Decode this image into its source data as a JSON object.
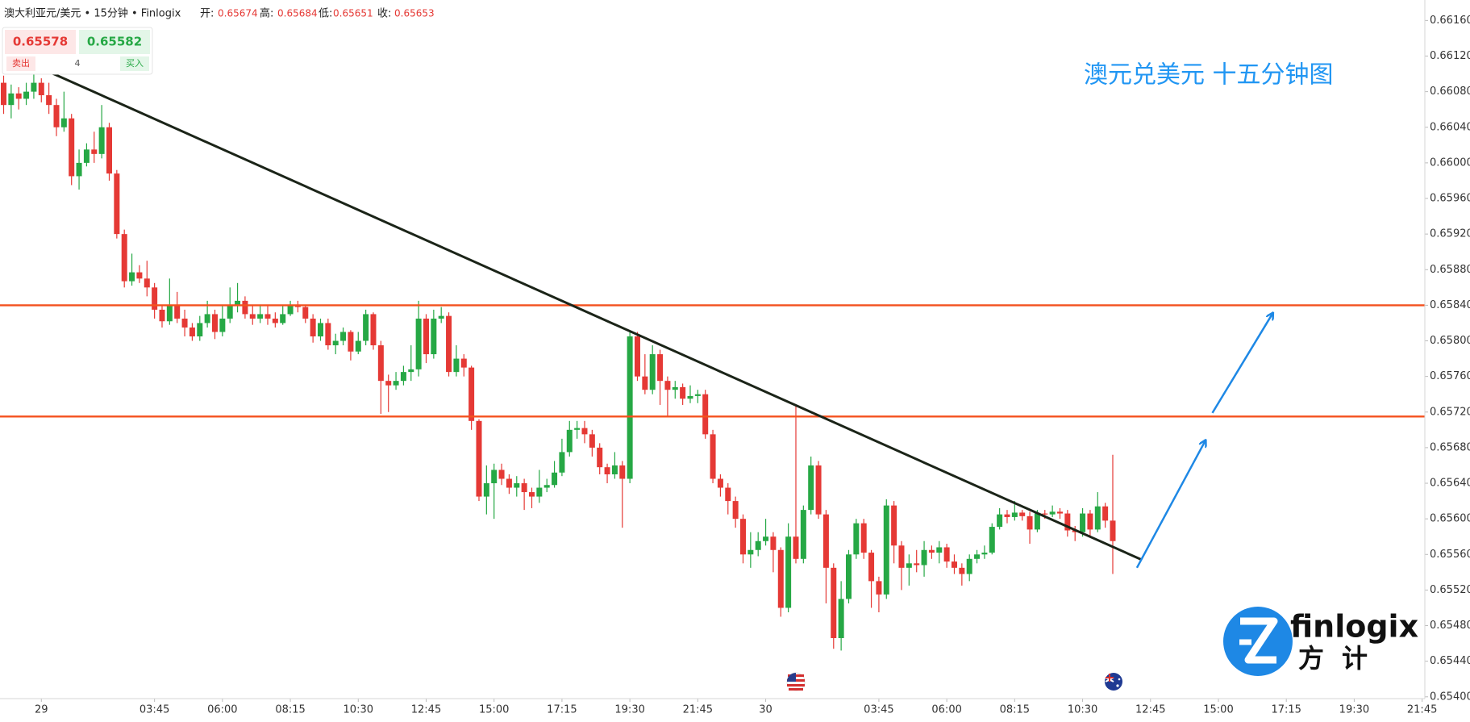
{
  "header": {
    "symbol": "澳大利亚元/美元 • 15分钟 • Finlogix",
    "open_label": "开:",
    "open": 0.65674,
    "high_label": "高:",
    "high": 0.65684,
    "low_label": "低:",
    "low": 0.65651,
    "close_label": "收:",
    "close": 0.65653
  },
  "quote": {
    "sell_price": 0.65578,
    "buy_price": 0.65582,
    "sell_label": "卖出",
    "spread": 4,
    "buy_label": "买入"
  },
  "logo": {
    "name": "finlogix",
    "name_cn": "方计"
  },
  "chart_data": {
    "type": "candlestick",
    "annotation": "澳元兑美元 十五分钟图",
    "x": [
      -1.25,
      -1,
      -0.75,
      -0.5,
      -0.25,
      0,
      0.25,
      0.5,
      0.75,
      1,
      1.25,
      1.5,
      1.75,
      2,
      2.25,
      2.5,
      2.75,
      3,
      3.25,
      3.5,
      3.75,
      4,
      4.25,
      4.5,
      4.75,
      5,
      5.25,
      5.5,
      5.75,
      6,
      6.25,
      6.5,
      6.75,
      7,
      7.25,
      7.5,
      7.75,
      8,
      8.25,
      8.5,
      8.75,
      9,
      9.25,
      9.5,
      9.75,
      10,
      10.25,
      10.5,
      10.75,
      11,
      11.25,
      11.5,
      11.75,
      12,
      12.25,
      12.5,
      12.75,
      13,
      13.25,
      13.5,
      13.75,
      14,
      14.25,
      14.5,
      14.75,
      15,
      15.25,
      15.5,
      15.75,
      16,
      16.25,
      16.5,
      16.75,
      17,
      17.25,
      17.5,
      17.75,
      18,
      18.25,
      18.5,
      18.75,
      19,
      19.25,
      19.5,
      19.75,
      20,
      20.25,
      20.5,
      20.75,
      21,
      21.25,
      21.5,
      21.75,
      22,
      22.25,
      22.5,
      22.75,
      23,
      23.25,
      23.5,
      23.75,
      24,
      24.25,
      24.5,
      24.75,
      25,
      25.25,
      25.5,
      25.75,
      26,
      26.25,
      26.5,
      26.75,
      27,
      27.25,
      27.5,
      27.75,
      28,
      28.25,
      28.5,
      28.75,
      29,
      29.25,
      29.5,
      29.75,
      30,
      30.25,
      30.5,
      30.75,
      31,
      31.25,
      31.5,
      31.75,
      32,
      32.25,
      32.5,
      32.75,
      33,
      33.25,
      33.5,
      33.75,
      34,
      34.25,
      34.5,
      34.75,
      35,
      35.25,
      35.5
    ],
    "open": [
      0.6609,
      0.66065,
      0.66078,
      0.66072,
      0.6608,
      0.6609,
      0.66076,
      0.66065,
      0.6604,
      0.6605,
      0.65985,
      0.66,
      0.66015,
      0.6601,
      0.6604,
      0.65988,
      0.6592,
      0.65867,
      0.65877,
      0.6587,
      0.6586,
      0.65835,
      0.65822,
      0.6584,
      0.65825,
      0.65815,
      0.65805,
      0.6582,
      0.6583,
      0.6581,
      0.65825,
      0.6584,
      0.65845,
      0.6583,
      0.65825,
      0.6583,
      0.65825,
      0.6582,
      0.6583,
      0.6584,
      0.65838,
      0.65825,
      0.65805,
      0.6582,
      0.65795,
      0.658,
      0.6581,
      0.65788,
      0.658,
      0.6583,
      0.65795,
      0.65755,
      0.6575,
      0.65755,
      0.65765,
      0.65768,
      0.65825,
      0.65785,
      0.65825,
      0.65828,
      0.65765,
      0.6578,
      0.6577,
      0.6571,
      0.65625,
      0.6564,
      0.65655,
      0.65645,
      0.65635,
      0.6564,
      0.6563,
      0.65625,
      0.65635,
      0.65638,
      0.65652,
      0.65675,
      0.657,
      0.65702,
      0.65695,
      0.6568,
      0.65658,
      0.6565,
      0.6566,
      0.65645,
      0.65805,
      0.6576,
      0.65745,
      0.65785,
      0.65755,
      0.65745,
      0.65748,
      0.65735,
      0.65738,
      0.6574,
      0.65695,
      0.65645,
      0.65635,
      0.6562,
      0.656,
      0.6556,
      0.65565,
      0.65575,
      0.6558,
      0.65565,
      0.655,
      0.6558,
      0.65555,
      0.6561,
      0.6566,
      0.65605,
      0.65545,
      0.65466,
      0.6551,
      0.6556,
      0.65595,
      0.65562,
      0.6553,
      0.65515,
      0.65615,
      0.6557,
      0.65545,
      0.6555,
      0.65548,
      0.65565,
      0.65562,
      0.65568,
      0.65552,
      0.65545,
      0.65538,
      0.65555,
      0.6556,
      0.65562,
      0.65591,
      0.65605,
      0.65602,
      0.65607,
      0.65603,
      0.65588,
      0.65606,
      0.65605,
      0.65608,
      0.65606,
      0.65587,
      0.65585,
      0.65606,
      0.65588,
      0.65614,
      0.65598
    ],
    "high": [
      0.66098,
      0.66088,
      0.66085,
      0.6609,
      0.661,
      0.66095,
      0.6609,
      0.66072,
      0.6608,
      0.66055,
      0.66015,
      0.66022,
      0.66035,
      0.66065,
      0.66045,
      0.65992,
      0.65925,
      0.65898,
      0.65885,
      0.6589,
      0.65865,
      0.6584,
      0.6587,
      0.65855,
      0.65835,
      0.6582,
      0.65828,
      0.65845,
      0.65835,
      0.6584,
      0.6586,
      0.65865,
      0.6585,
      0.6584,
      0.6584,
      0.6584,
      0.65832,
      0.6584,
      0.65845,
      0.65845,
      0.6584,
      0.6583,
      0.65825,
      0.65825,
      0.65808,
      0.65815,
      0.65812,
      0.6581,
      0.65835,
      0.65832,
      0.658,
      0.65762,
      0.65765,
      0.65772,
      0.65795,
      0.65845,
      0.6583,
      0.65835,
      0.65838,
      0.65832,
      0.65795,
      0.65785,
      0.65772,
      0.65712,
      0.6566,
      0.65662,
      0.65662,
      0.6565,
      0.65648,
      0.65645,
      0.65635,
      0.65655,
      0.65645,
      0.65665,
      0.6569,
      0.6571,
      0.6571,
      0.6571,
      0.657,
      0.65685,
      0.65662,
      0.65675,
      0.65665,
      0.6581,
      0.6581,
      0.65785,
      0.65795,
      0.6579,
      0.6576,
      0.65755,
      0.65752,
      0.6575,
      0.65745,
      0.65745,
      0.657,
      0.6565,
      0.6564,
      0.65625,
      0.65605,
      0.65585,
      0.65585,
      0.656,
      0.65585,
      0.65568,
      0.65595,
      0.65728,
      0.65615,
      0.6567,
      0.65665,
      0.6561,
      0.6555,
      0.6553,
      0.65565,
      0.656,
      0.656,
      0.65565,
      0.65535,
      0.65622,
      0.6562,
      0.65575,
      0.6556,
      0.65565,
      0.65575,
      0.6557,
      0.65575,
      0.65572,
      0.6556,
      0.6555,
      0.6556,
      0.65565,
      0.6557,
      0.65595,
      0.65612,
      0.6561,
      0.6562,
      0.6561,
      0.65608,
      0.6561,
      0.6561,
      0.65615,
      0.65612,
      0.6561,
      0.65592,
      0.65612,
      0.6561,
      0.6563,
      0.65618,
      0.65672
    ],
    "low": [
      0.66055,
      0.6605,
      0.6606,
      0.66065,
      0.66072,
      0.66068,
      0.66055,
      0.6603,
      0.66035,
      0.65975,
      0.6597,
      0.65996,
      0.66,
      0.66005,
      0.6598,
      0.65915,
      0.6586,
      0.65862,
      0.65865,
      0.6585,
      0.65825,
      0.65815,
      0.65818,
      0.6582,
      0.65805,
      0.658,
      0.658,
      0.65815,
      0.65802,
      0.65805,
      0.6582,
      0.65832,
      0.65825,
      0.65818,
      0.6582,
      0.65818,
      0.65815,
      0.65818,
      0.65828,
      0.65832,
      0.6582,
      0.65798,
      0.658,
      0.6579,
      0.65785,
      0.65795,
      0.65778,
      0.65785,
      0.65795,
      0.6579,
      0.65718,
      0.6572,
      0.65745,
      0.6575,
      0.65755,
      0.6576,
      0.65775,
      0.6578,
      0.6582,
      0.6576,
      0.6576,
      0.6576,
      0.657,
      0.6562,
      0.65605,
      0.656,
      0.65638,
      0.65628,
      0.65625,
      0.6561,
      0.65612,
      0.65618,
      0.6563,
      0.65635,
      0.65648,
      0.6567,
      0.6569,
      0.65685,
      0.6567,
      0.6565,
      0.6564,
      0.65645,
      0.6559,
      0.6564,
      0.65755,
      0.6574,
      0.6574,
      0.65728,
      0.65715,
      0.65735,
      0.65728,
      0.6573,
      0.6573,
      0.6569,
      0.6564,
      0.65625,
      0.65605,
      0.6559,
      0.6555,
      0.65545,
      0.65558,
      0.6557,
      0.6554,
      0.6549,
      0.65495,
      0.6555,
      0.6555,
      0.65605,
      0.656,
      0.65505,
      0.65454,
      0.65452,
      0.65505,
      0.65555,
      0.65555,
      0.655,
      0.65495,
      0.6551,
      0.6555,
      0.6552,
      0.65525,
      0.6554,
      0.65535,
      0.65555,
      0.6555,
      0.65545,
      0.65538,
      0.65525,
      0.6553,
      0.6555,
      0.65555,
      0.6556,
      0.65588,
      0.65595,
      0.65598,
      0.65598,
      0.65572,
      0.65585,
      0.656,
      0.65602,
      0.656,
      0.6558,
      0.65575,
      0.6558,
      0.6558,
      0.65585,
      0.6559,
      0.65538
    ],
    "close": [
      0.66065,
      0.66078,
      0.66072,
      0.6608,
      0.6609,
      0.66076,
      0.66065,
      0.6604,
      0.6605,
      0.65985,
      0.66,
      0.66015,
      0.6601,
      0.6604,
      0.65988,
      0.6592,
      0.65867,
      0.65877,
      0.6587,
      0.6586,
      0.65835,
      0.65822,
      0.6584,
      0.65825,
      0.65815,
      0.65805,
      0.6582,
      0.6583,
      0.6581,
      0.65825,
      0.6584,
      0.65845,
      0.6583,
      0.65825,
      0.6583,
      0.65825,
      0.6582,
      0.6583,
      0.6584,
      0.65838,
      0.65825,
      0.65805,
      0.6582,
      0.65795,
      0.658,
      0.6581,
      0.65788,
      0.658,
      0.6583,
      0.65795,
      0.65755,
      0.6575,
      0.65755,
      0.65765,
      0.65768,
      0.65825,
      0.65785,
      0.65825,
      0.65828,
      0.65765,
      0.6578,
      0.6577,
      0.6571,
      0.65625,
      0.6564,
      0.65655,
      0.65645,
      0.65635,
      0.6564,
      0.6563,
      0.65625,
      0.65635,
      0.65638,
      0.65652,
      0.65675,
      0.657,
      0.65702,
      0.65695,
      0.6568,
      0.65658,
      0.6565,
      0.6566,
      0.65645,
      0.65805,
      0.6576,
      0.65745,
      0.65785,
      0.65755,
      0.65745,
      0.65748,
      0.65735,
      0.65738,
      0.6574,
      0.65695,
      0.65645,
      0.65635,
      0.6562,
      0.656,
      0.6556,
      0.65565,
      0.65575,
      0.6558,
      0.65565,
      0.655,
      0.6558,
      0.65555,
      0.6561,
      0.6566,
      0.65605,
      0.65545,
      0.65466,
      0.6551,
      0.6556,
      0.65595,
      0.65562,
      0.6553,
      0.65515,
      0.65615,
      0.6557,
      0.65545,
      0.6555,
      0.65548,
      0.65565,
      0.65562,
      0.65568,
      0.65552,
      0.65545,
      0.65538,
      0.65555,
      0.6556,
      0.65562,
      0.65591,
      0.65605,
      0.65602,
      0.65607,
      0.65603,
      0.65588,
      0.65606,
      0.65605,
      0.65608,
      0.65606,
      0.65587,
      0.65585,
      0.65606,
      0.65588,
      0.65614,
      0.65598,
      0.65575
    ],
    "up_color": "#26a845",
    "down_color": "#e53935",
    "xlim": [
      -1.37,
      45.84
    ],
    "ylim": [
      0.65398,
      0.66183
    ],
    "xticks": [
      {
        "value": 0,
        "label": "29"
      },
      {
        "value": 3.75,
        "label": "03:45"
      },
      {
        "value": 6,
        "label": "06:00"
      },
      {
        "value": 8.25,
        "label": "08:15"
      },
      {
        "value": 10.5,
        "label": "10:30"
      },
      {
        "value": 12.75,
        "label": "12:45"
      },
      {
        "value": 15,
        "label": "15:00"
      },
      {
        "value": 17.25,
        "label": "17:15"
      },
      {
        "value": 19.5,
        "label": "19:30"
      },
      {
        "value": 21.75,
        "label": "21:45"
      },
      {
        "value": 24,
        "label": "30"
      },
      {
        "value": 27.75,
        "label": "03:45"
      },
      {
        "value": 30,
        "label": "06:00"
      },
      {
        "value": 32.25,
        "label": "08:15"
      },
      {
        "value": 34.5,
        "label": "10:30"
      },
      {
        "value": 36.75,
        "label": "12:45"
      },
      {
        "value": 39,
        "label": "15:00"
      },
      {
        "value": 41.25,
        "label": "17:15"
      },
      {
        "value": 43.5,
        "label": "19:30"
      },
      {
        "value": 45.75,
        "label": "21:45"
      }
    ],
    "yticks": [
      {
        "value": 0.654,
        "label": "0.65400"
      },
      {
        "value": 0.6544,
        "label": "0.65440"
      },
      {
        "value": 0.6548,
        "label": "0.65480"
      },
      {
        "value": 0.6552,
        "label": "0.65520"
      },
      {
        "value": 0.6556,
        "label": "0.65560"
      },
      {
        "value": 0.656,
        "label": "0.65600"
      },
      {
        "value": 0.6564,
        "label": "0.65640"
      },
      {
        "value": 0.6568,
        "label": "0.65680"
      },
      {
        "value": 0.6572,
        "label": "0.65720"
      },
      {
        "value": 0.6576,
        "label": "0.65760"
      },
      {
        "value": 0.658,
        "label": "0.65800"
      },
      {
        "value": 0.6584,
        "label": "0.65840"
      },
      {
        "value": 0.6588,
        "label": "0.65880"
      },
      {
        "value": 0.6592,
        "label": "0.65920"
      },
      {
        "value": 0.6596,
        "label": "0.65960"
      },
      {
        "value": 0.66,
        "label": "0.66000"
      },
      {
        "value": 0.6604,
        "label": "0.66040"
      },
      {
        "value": 0.6608,
        "label": "0.66080"
      },
      {
        "value": 0.6612,
        "label": "0.66120"
      },
      {
        "value": 0.6616,
        "label": "0.66160"
      }
    ],
    "hlines": [
      {
        "value": 0.6584,
        "color": "#f4511e"
      },
      {
        "value": 0.65715,
        "color": "#f4511e"
      }
    ],
    "trendline": {
      "x": [
        0.34,
        36.46
      ],
      "y": [
        0.66101,
        0.65554
      ],
      "color": "#1b2418"
    },
    "arrows": [
      {
        "x": [
          36.3,
          38.57
        ],
        "y": [
          0.65545,
          0.65688
        ]
      },
      {
        "x": [
          38.8,
          40.8
        ],
        "y": [
          0.65719,
          0.65831
        ]
      }
    ],
    "arrow_color": "#1e88e5"
  }
}
